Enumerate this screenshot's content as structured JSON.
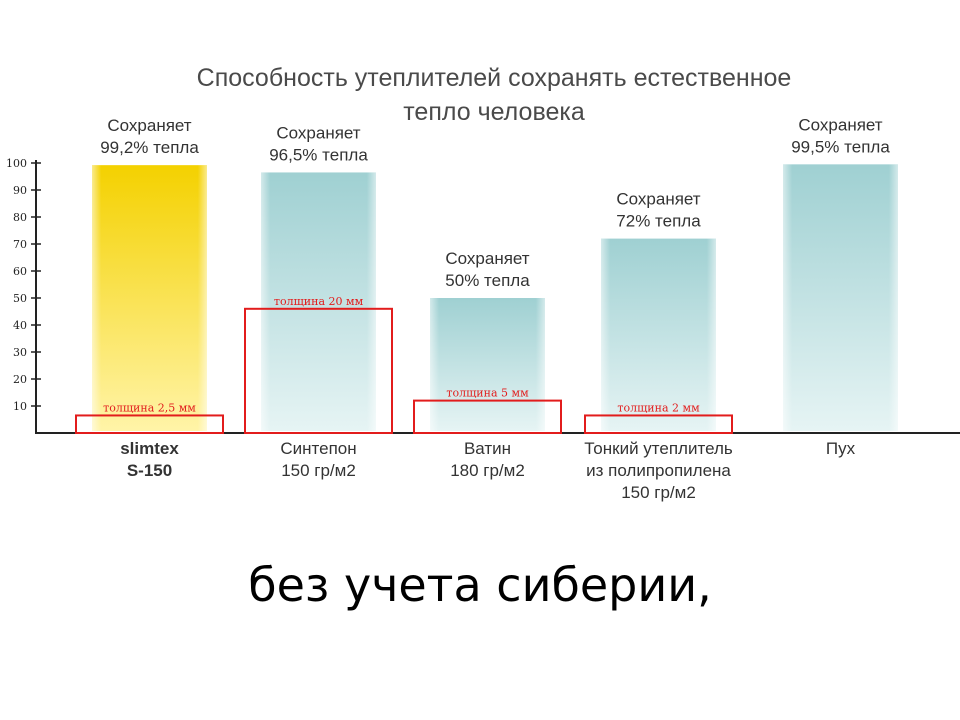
{
  "caption": "без учета сиберии,",
  "chart_data": {
    "type": "bar",
    "title_lines": [
      "Способность утеплителей сохранять естественное",
      "тепло человека"
    ],
    "y_ticks": [
      10,
      20,
      30,
      40,
      50,
      60,
      70,
      80,
      90,
      100
    ],
    "ylim": [
      0,
      100
    ],
    "grid": false,
    "bars": [
      {
        "category_lines": [
          "slimtex",
          "S-150"
        ],
        "category_bold": true,
        "value": 99.2,
        "value_label_lines": [
          "Сохраняет",
          "99,2% тепла"
        ],
        "thickness_label": "толщина 2,5 мм",
        "thickness_box_level": 6.5,
        "color_top": "#f4d100",
        "color_bottom": "#fff4a8"
      },
      {
        "category_lines": [
          "Синтепон",
          "150 гр/м2"
        ],
        "category_bold": false,
        "value": 96.5,
        "value_label_lines": [
          "Сохраняет",
          "96,5% тепла"
        ],
        "thickness_label": "толщина 20 мм",
        "thickness_box_level": 46,
        "color_top": "#9fd0d2",
        "color_bottom": "#e6f4f4"
      },
      {
        "category_lines": [
          "Ватин",
          "180 гр/м2"
        ],
        "category_bold": false,
        "value": 50,
        "value_label_lines": [
          "Сохраняет",
          "50% тепла"
        ],
        "thickness_label": "толщина 5 мм",
        "thickness_box_level": 12,
        "color_top": "#9fd0d2",
        "color_bottom": "#e6f4f4"
      },
      {
        "category_lines": [
          "Тонкий утеплитель",
          "из полипропилена",
          "150 гр/м2"
        ],
        "category_bold": false,
        "value": 72,
        "value_label_lines": [
          "Сохраняет",
          "72% тепла"
        ],
        "thickness_label": "толщина 2 мм",
        "thickness_box_level": 6.5,
        "color_top": "#9fd0d2",
        "color_bottom": "#e6f4f4"
      },
      {
        "category_lines": [
          "Пух"
        ],
        "category_bold": false,
        "value": 99.5,
        "value_label_lines": [
          "Сохраняет",
          "99,5% тепла"
        ],
        "thickness_label": "",
        "thickness_box_level": null,
        "color_top": "#9fd0d2",
        "color_bottom": "#e6f4f4"
      }
    ],
    "colors": {
      "axis": "#222222",
      "text": "#333333",
      "title": "#4a4a4a",
      "thickness_box": "#e21c1c"
    }
  }
}
